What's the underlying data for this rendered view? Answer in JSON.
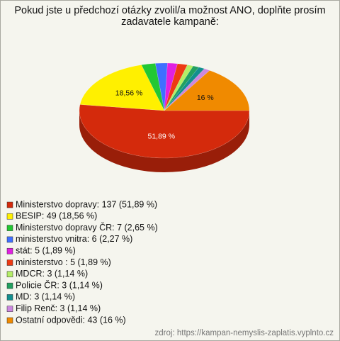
{
  "chart_data": {
    "type": "pie",
    "title": "Pokud jste u předchozí otázky zvolil/a možnost ANO, doplňte prosím zadavatele kampaně:",
    "categories": [
      "Ministerstvo dopravy: 137 (51,89 %)",
      "BESIP: 49 (18,56 %)",
      "Ministerstvo dopravy ČR: 7 (2,65 %)",
      "ministerstvo vnitra: 6 (2,27 %)",
      "stát: 5 (1,89 %)",
      "ministerstvo : 5 (1,89 %)",
      "MDCR: 3 (1,14 %)",
      "Policie ČR: 3 (1,14 %)",
      "MD: 3 (1,14 %)",
      "Filip Renč: 3 (1,14 %)",
      "Ostatní odpovědi: 43 (16 %)"
    ],
    "values": [
      51.89,
      18.56,
      2.65,
      2.27,
      1.89,
      1.89,
      1.14,
      1.14,
      1.14,
      1.14,
      16
    ],
    "value_labels": [
      "51,89 %",
      "18,56 %",
      null,
      null,
      null,
      null,
      null,
      null,
      null,
      null,
      "16 %"
    ],
    "colors": [
      "#d42a0c",
      "#fff000",
      "#22c833",
      "#3f6fff",
      "#e020e0",
      "#ee3a12",
      "#b4ee66",
      "#22a060",
      "#138f8f",
      "#cc88e0",
      "#f08a00"
    ],
    "source": "zdroj: https://kampan-nemyslis-zaplatis.vyplnto.cz"
  }
}
